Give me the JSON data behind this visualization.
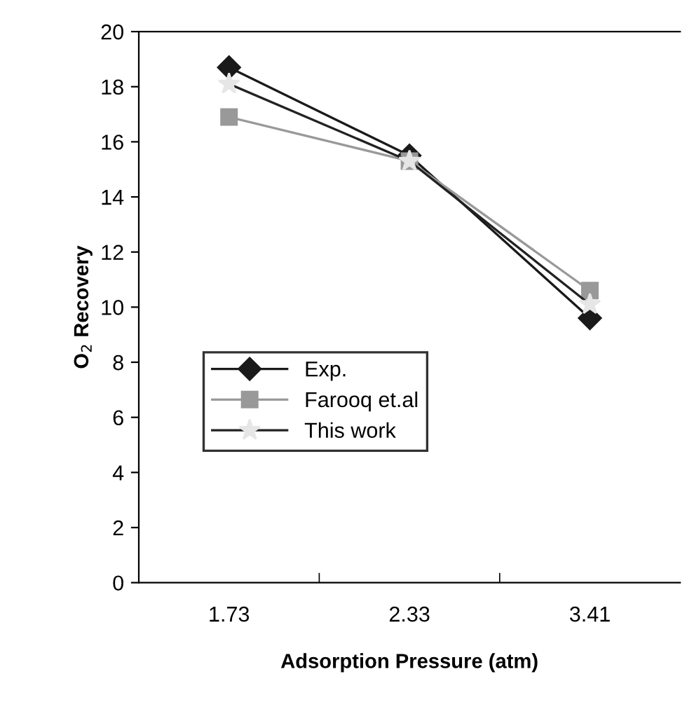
{
  "chart_data": {
    "type": "line",
    "xlabel": "Adsorption Pressure (atm)",
    "ylabel": "O$_{2}$ Recovery",
    "categories": [
      "1.73",
      "2.33",
      "3.41"
    ],
    "series": [
      {
        "name": "Exp.",
        "color": "#1a1a1a",
        "values": [
          18.7,
          15.5,
          9.6
        ],
        "marker": "diamond"
      },
      {
        "name": "Farooq et.al",
        "color": "#999999",
        "values": [
          16.9,
          15.3,
          10.6
        ],
        "marker": "square"
      },
      {
        "name": "This work",
        "color": "#222222",
        "values": [
          18.1,
          15.3,
          10.1
        ],
        "marker": "star"
      }
    ],
    "ylim": [
      0,
      20
    ],
    "yticks": [
      0,
      2,
      4,
      6,
      8,
      10,
      12,
      14,
      16,
      18,
      20
    ],
    "grid": false,
    "legend": "bottom left"
  }
}
